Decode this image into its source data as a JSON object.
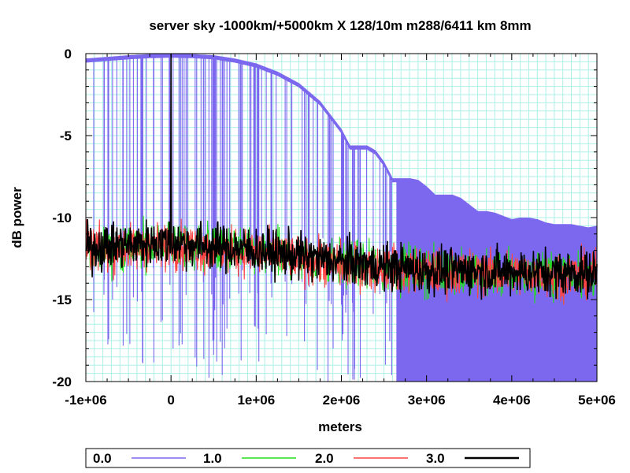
{
  "chart_data": {
    "type": "line",
    "title": "server sky -1000km/+5000km X 128/10m  m288/6411 km 8mm",
    "xlabel": "meters",
    "ylabel": "dB power",
    "xlim": [
      -1000000,
      5000000
    ],
    "ylim": [
      -20,
      0
    ],
    "x_ticks": [
      -1000000,
      0,
      1000000,
      2000000,
      3000000,
      4000000,
      5000000
    ],
    "x_tick_labels": [
      "-1e+06",
      "0",
      "1e+06",
      "2e+06",
      "3e+06",
      "4e+06",
      "5e+06"
    ],
    "y_ticks": [
      0,
      -5,
      -10,
      -15,
      -20
    ],
    "y_tick_labels": [
      "0",
      "-5",
      "-10",
      "-15",
      "-20"
    ],
    "grid": true,
    "legend_position": "bottom",
    "series": [
      {
        "name": "0.0",
        "color": "#7b68ee",
        "envelope_x": [
          -1000000,
          -750000,
          -500000,
          -250000,
          0,
          250000,
          500000,
          750000,
          1000000,
          1250000,
          1500000,
          1750000,
          2000000,
          2100000,
          2200000,
          2300000,
          2400000,
          2500000,
          2600000,
          2700000,
          2800000,
          2900000,
          3000000,
          3100000,
          3200000,
          3300000,
          3400000,
          3500000,
          3600000,
          3700000,
          3800000,
          3900000,
          4000000,
          4100000,
          4200000,
          4300000,
          4400000,
          4500000,
          4600000,
          4700000,
          4800000,
          4900000,
          5000000
        ],
        "envelope_db": [
          -0.3,
          -0.2,
          -0.1,
          -0.03,
          0,
          -0.03,
          -0.1,
          -0.3,
          -0.6,
          -1.1,
          -1.8,
          -2.9,
          -4.6,
          -5.6,
          -5.6,
          -5.6,
          -5.9,
          -6.6,
          -7.6,
          -7.6,
          -7.6,
          -7.7,
          -8.1,
          -8.6,
          -8.6,
          -8.6,
          -8.8,
          -9.2,
          -9.6,
          -9.6,
          -9.7,
          -9.9,
          -10.1,
          -10.0,
          -10.0,
          -10.1,
          -10.3,
          -10.4,
          -10.4,
          -10.4,
          -10.5,
          -10.6,
          -10.5
        ],
        "floor_db": -20
      },
      {
        "name": "1.0",
        "color": "#22dd22",
        "mean_x": [
          -1000000,
          0,
          1000000,
          2000000,
          3000000,
          4000000,
          5000000
        ],
        "mean_db": [
          -12,
          -11.6,
          -12.1,
          -12.8,
          -13.3,
          -13.4,
          -13.5
        ],
        "peak_x": 0,
        "peak_db": -5
      },
      {
        "name": "2.0",
        "color": "#ff4444",
        "mean_x": [
          -1000000,
          0,
          1000000,
          2000000,
          3000000,
          4000000,
          5000000
        ],
        "mean_db": [
          -12,
          -11.7,
          -12.2,
          -12.9,
          -13.3,
          -13.4,
          -13.5
        ],
        "peak_x": 0,
        "peak_db": -4
      },
      {
        "name": "3.0",
        "color": "#000000",
        "mean_x": [
          -1000000,
          0,
          1000000,
          2000000,
          3000000,
          4000000,
          5000000
        ],
        "mean_db": [
          -11.8,
          -11.5,
          -12.0,
          -12.7,
          -13.2,
          -13.3,
          -13.4
        ],
        "peak_x": 0,
        "peak_db": 0
      }
    ]
  }
}
